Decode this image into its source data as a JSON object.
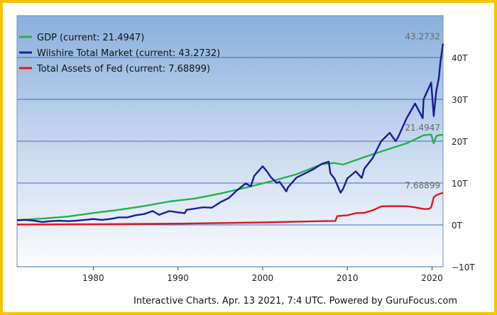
{
  "chart_data": {
    "type": "line",
    "xlim": [
      1971,
      2021.3
    ],
    "ylim": [
      -10,
      50
    ],
    "x_ticks": [
      {
        "value": 1980,
        "label": "1980"
      },
      {
        "value": 1990,
        "label": "1990"
      },
      {
        "value": 2000,
        "label": "2000"
      },
      {
        "value": 2010,
        "label": "2010"
      },
      {
        "value": 2020,
        "label": "2020"
      }
    ],
    "y_ticks": [
      {
        "value": 40,
        "label": "40T"
      },
      {
        "value": 30,
        "label": "30T"
      },
      {
        "value": 20,
        "label": "20T"
      },
      {
        "value": 10,
        "label": "10T"
      },
      {
        "value": 0,
        "label": "0T"
      },
      {
        "value": -10,
        "label": "−10T"
      }
    ],
    "grid": true,
    "legend_position": "top-left",
    "series": [
      {
        "name": "GDP (current: 21.4947)",
        "color": "#22b14c",
        "end_label": "21.4947",
        "x": [
          1971,
          1974,
          1977,
          1980,
          1983,
          1986,
          1989,
          1992,
          1995,
          1998,
          2001,
          2004,
          2007,
          2008.5,
          2009.5,
          2012,
          2015,
          2017,
          2019,
          2019.9,
          2020.2,
          2020.5,
          2020.9,
          2021.3
        ],
        "values": [
          1.15,
          1.5,
          2.0,
          2.85,
          3.6,
          4.5,
          5.6,
          6.3,
          7.5,
          8.9,
          10.4,
          12.1,
          14.5,
          14.8,
          14.4,
          16.2,
          18.2,
          19.5,
          21.4,
          21.6,
          19.5,
          21.2,
          21.5,
          21.5
        ]
      },
      {
        "name": "Wilshire Total Market (current: 43.2732)",
        "color": "#1a1a99",
        "end_label": "43.2732",
        "x": [
          1971,
          1972,
          1973,
          1974,
          1975,
          1976,
          1977,
          1978,
          1979,
          1980,
          1981,
          1982,
          1983,
          1984,
          1985,
          1986,
          1987,
          1987.8,
          1988,
          1989,
          1990,
          1990.8,
          1991,
          1992,
          1993,
          1994,
          1995,
          1996,
          1997,
          1998,
          1998.6,
          1999,
          2000,
          2000.5,
          2001,
          2001.7,
          2002,
          2002.8,
          2003,
          2004,
          2005,
          2006,
          2007,
          2007.8,
          2008,
          2008.5,
          2009.2,
          2009.5,
          2010,
          2011,
          2011.7,
          2012,
          2013,
          2014,
          2015,
          2015.7,
          2016,
          2017,
          2018,
          2018.9,
          2019,
          2019.9,
          2020.2,
          2020.5,
          2020.8,
          2021,
          2021.3
        ],
        "values": [
          1.1,
          1.2,
          1.0,
          0.7,
          0.9,
          1.0,
          0.9,
          1.0,
          1.2,
          1.4,
          1.2,
          1.4,
          1.8,
          1.8,
          2.3,
          2.6,
          3.3,
          2.4,
          2.6,
          3.3,
          3.0,
          2.8,
          3.6,
          3.9,
          4.2,
          4.1,
          5.4,
          6.4,
          8.3,
          9.9,
          9.2,
          11.7,
          14.0,
          12.8,
          11.3,
          10.0,
          10.3,
          8.0,
          9.0,
          11.3,
          12.3,
          13.3,
          14.6,
          15.1,
          12.3,
          11.0,
          7.7,
          8.6,
          11.1,
          12.8,
          11.2,
          13.4,
          16.0,
          20.0,
          22.0,
          20.0,
          21.0,
          25.5,
          29.0,
          25.5,
          30.0,
          34.0,
          26.0,
          32.0,
          35.0,
          39.0,
          43.3
        ]
      },
      {
        "name": "Total Assets of Fed (current: 7.68899)",
        "color": "#e01818",
        "end_label": "7.68899",
        "x": [
          1971,
          1980,
          1990,
          2000,
          2007,
          2008.6,
          2008.8,
          2010,
          2011,
          2012,
          2013,
          2014,
          2015,
          2017,
          2018,
          2019,
          2019.6,
          2019.9,
          2020.2,
          2020.5,
          2021.3
        ],
        "values": [
          0.08,
          0.15,
          0.3,
          0.6,
          0.9,
          0.95,
          2.1,
          2.3,
          2.8,
          2.9,
          3.5,
          4.4,
          4.5,
          4.45,
          4.2,
          3.8,
          3.8,
          4.2,
          6.6,
          7.1,
          7.69
        ]
      }
    ]
  },
  "footer": "Interactive Charts. Apr. 13 2021, 7:4 UTC. Powered by GuruFocus.com"
}
